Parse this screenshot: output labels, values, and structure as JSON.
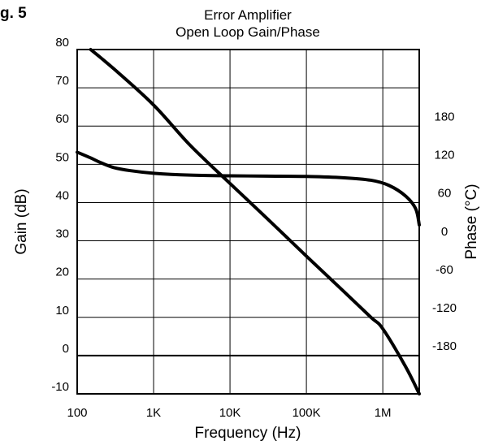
{
  "figure_label": "g. 5",
  "chart_data": {
    "type": "line",
    "title": [
      "Error Amplifier",
      "Open Loop Gain/Phase"
    ],
    "xlabel": "Frequency (Hz)",
    "ylabel": "Gain (dB)",
    "y2label": "Phase (°C)",
    "xscale": "log",
    "xlim": [
      100,
      3000000
    ],
    "ylim": [
      -10,
      80
    ],
    "y2lim": [
      -255,
      285
    ],
    "grid": true,
    "x_ticks": [
      {
        "value": 100,
        "label": "100"
      },
      {
        "value": 1000,
        "label": "1K"
      },
      {
        "value": 10000,
        "label": "10K"
      },
      {
        "value": 100000,
        "label": "100K"
      },
      {
        "value": 1000000,
        "label": "1M"
      }
    ],
    "y_ticks": [
      {
        "value": 80,
        "label": "80"
      },
      {
        "value": 70,
        "label": "70"
      },
      {
        "value": 60,
        "label": "60"
      },
      {
        "value": 50,
        "label": "50"
      },
      {
        "value": 40,
        "label": "40"
      },
      {
        "value": 30,
        "label": "30"
      },
      {
        "value": 20,
        "label": "20"
      },
      {
        "value": 10,
        "label": "10"
      },
      {
        "value": 0,
        "label": "0"
      },
      {
        "value": -10,
        "label": "-10"
      }
    ],
    "y2_ticks": [
      {
        "value": 180,
        "label": "180"
      },
      {
        "value": 120,
        "label": "120"
      },
      {
        "value": 60,
        "label": "60"
      },
      {
        "value": 0,
        "label": "0"
      },
      {
        "value": -60,
        "label": "-60"
      },
      {
        "value": -120,
        "label": "-120"
      },
      {
        "value": -180,
        "label": "-180"
      }
    ],
    "series": [
      {
        "axis": "left",
        "x": [
          150,
          300,
          1000,
          3000,
          10000,
          30000,
          100000,
          300000,
          700000,
          1000000,
          2000000,
          3000000
        ],
        "y": [
          80,
          75,
          65.5,
          55,
          45,
          36,
          26,
          17,
          10,
          7,
          -3,
          -10
        ]
      },
      {
        "axis": "right",
        "x": [
          100,
          150,
          200,
          300,
          500,
          1000,
          3000,
          10000,
          30000,
          100000,
          300000,
          700000,
          1200000,
          2000000,
          2700000,
          3000000
        ],
        "y": [
          124,
          115,
          108,
          100,
          95,
          91,
          88,
          87,
          86.5,
          86,
          84,
          80,
          72,
          55,
          35,
          10
        ]
      }
    ]
  }
}
